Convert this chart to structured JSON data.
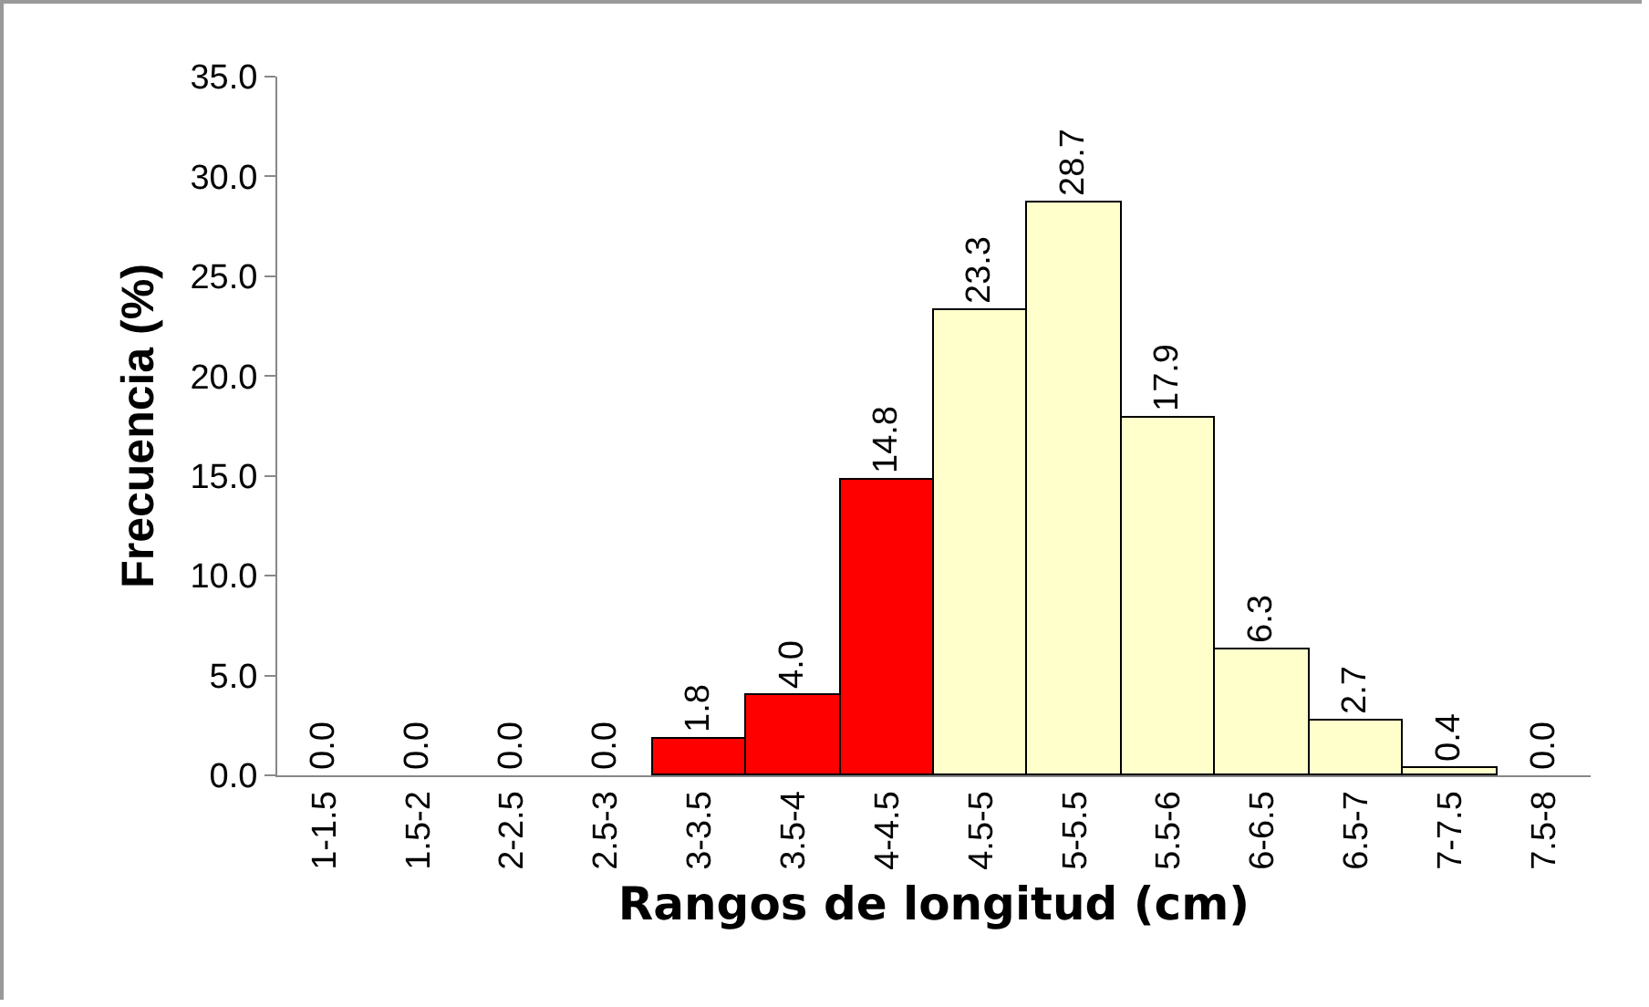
{
  "chart_data": {
    "type": "bar",
    "xlabel": "Rangos de longitud (cm)",
    "ylabel": "Frecuencia (%)",
    "categories": [
      "1-1.5",
      "1.5-2",
      "2-2.5",
      "2.5-3",
      "3-3.5",
      "3.5-4",
      "4-4.5",
      "4.5-5",
      "5-5.5",
      "5.5-6",
      "6-6.5",
      "6.5-7",
      "7-7.5",
      "7.5-8"
    ],
    "values": [
      0,
      0,
      0,
      0,
      1.8,
      4.0,
      14.8,
      23.3,
      28.7,
      17.9,
      6.3,
      2.7,
      0.4,
      0
    ],
    "value_labels": [
      "0.0",
      "0.0",
      "0.0",
      "0.0",
      "1.8",
      "4.0",
      "14.8",
      "23.3",
      "28.7",
      "17.9",
      "6.3",
      "2.7",
      "0.4",
      "0.0"
    ],
    "colors": [
      null,
      null,
      null,
      null,
      "#ff0000",
      "#ff0000",
      "#ff0000",
      "#ffffcc",
      "#ffffcc",
      "#ffffcc",
      "#ffffcc",
      "#ffffcc",
      "#ffffcc",
      null
    ],
    "ylim": [
      0,
      35
    ],
    "yticks": [
      {
        "value": 0,
        "label": "0.0"
      },
      {
        "value": 5,
        "label": "5.0"
      },
      {
        "value": 10,
        "label": "10.0"
      },
      {
        "value": 15,
        "label": "15.0"
      },
      {
        "value": 20,
        "label": "20.0"
      },
      {
        "value": 25,
        "label": "25.0"
      },
      {
        "value": 30,
        "label": "30.0"
      },
      {
        "value": 35,
        "label": "35.0"
      }
    ],
    "grid": false,
    "legend": false
  }
}
